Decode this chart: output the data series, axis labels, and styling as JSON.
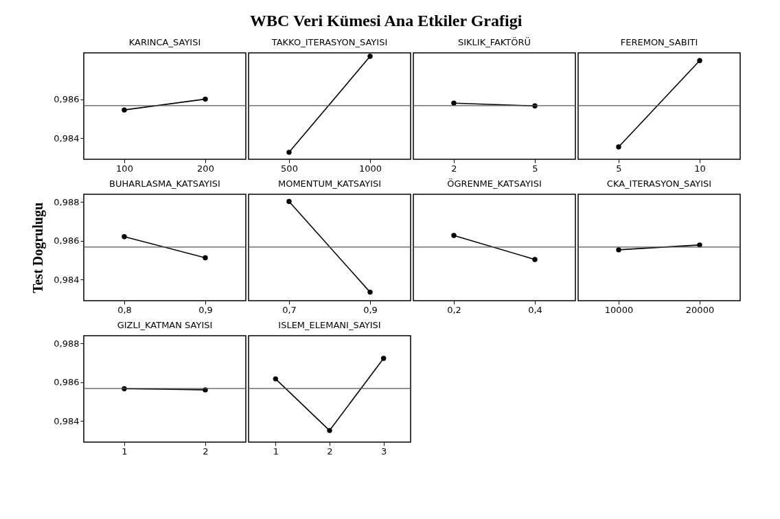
{
  "chart_data": [
    {
      "type": "other",
      "title": "WBC Veri Kümesi Ana Etkiler Grafigi"
    },
    {
      "type": "line",
      "title": "KARINCA_SAYISI",
      "categories": [
        "100",
        "200"
      ],
      "values": [
        0.98545,
        0.98601
      ],
      "color": "#000000",
      "marker": "circle",
      "ylim": [
        0.9829,
        0.9884
      ],
      "yticks": [
        {
          "value": 0.984,
          "label": "0,984"
        },
        {
          "value": 0.986,
          "label": "0,986"
        }
      ],
      "ref_lines": [
        {
          "axis": "y",
          "value": 0.98567
        }
      ]
    },
    {
      "type": "line",
      "title": "TAKKO_ITERASYON_SAYISI",
      "categories": [
        "500",
        "1000"
      ],
      "values": [
        0.98326,
        0.98822
      ],
      "color": "#000000",
      "marker": "circle",
      "ylim": [
        0.9829,
        0.9884
      ],
      "tick_labels": "x",
      "ref_lines": [
        {
          "axis": "y",
          "value": 0.98567
        }
      ]
    },
    {
      "type": "line",
      "title": "SIKLIK_FAKTÖRÜ",
      "categories": [
        "2",
        "5"
      ],
      "values": [
        0.9858,
        0.98566
      ],
      "color": "#000000",
      "marker": "circle",
      "ylim": [
        0.9829,
        0.9884
      ],
      "tick_labels": "x",
      "ref_lines": [
        {
          "axis": "y",
          "value": 0.98567
        }
      ]
    },
    {
      "type": "line",
      "title": "FEREMON_SABITI",
      "categories": [
        "5",
        "10"
      ],
      "values": [
        0.98354,
        0.988
      ],
      "color": "#000000",
      "marker": "circle",
      "ylim": [
        0.9829,
        0.9884
      ],
      "tick_labels": "x",
      "ref_lines": [
        {
          "axis": "y",
          "value": 0.98567
        }
      ]
    },
    {
      "type": "line",
      "title": "BUHARLASMA_KATSAYISI",
      "ylabel": "Test Dogrulugu",
      "categories": [
        "0,8",
        "0,9"
      ],
      "values": [
        0.98621,
        0.98512
      ],
      "color": "#000000",
      "marker": "circle",
      "ylim": [
        0.9829,
        0.9884
      ],
      "yticks": [
        {
          "value": 0.984,
          "label": "0,984"
        },
        {
          "value": 0.986,
          "label": "0,986"
        },
        {
          "value": 0.988,
          "label": "0,988"
        }
      ],
      "ref_lines": [
        {
          "axis": "y",
          "value": 0.98567
        }
      ]
    },
    {
      "type": "line",
      "title": "MOMENTUM_KATSAYISI",
      "categories": [
        "0,7",
        "0,9"
      ],
      "values": [
        0.98803,
        0.98334
      ],
      "color": "#000000",
      "marker": "circle",
      "ylim": [
        0.9829,
        0.9884
      ],
      "tick_labels": "x",
      "ref_lines": [
        {
          "axis": "y",
          "value": 0.98567
        }
      ]
    },
    {
      "type": "line",
      "title": "ÖGRENME_KATSAYISI",
      "categories": [
        "0,2",
        "0,4"
      ],
      "values": [
        0.98627,
        0.98503
      ],
      "color": "#000000",
      "marker": "circle",
      "ylim": [
        0.9829,
        0.9884
      ],
      "tick_labels": "x",
      "ref_lines": [
        {
          "axis": "y",
          "value": 0.98567
        }
      ]
    },
    {
      "type": "line",
      "title": "CKA_ITERASYON_SAYISI",
      "categories": [
        "10000",
        "20000"
      ],
      "values": [
        0.98553,
        0.98578
      ],
      "color": "#000000",
      "marker": "circle",
      "ylim": [
        0.9829,
        0.9884
      ],
      "tick_labels": "x",
      "ref_lines": [
        {
          "axis": "y",
          "value": 0.98567
        }
      ]
    },
    {
      "type": "line",
      "title": "GIZLI_KATMAN SAYISI",
      "categories": [
        "1",
        "2"
      ],
      "values": [
        0.98566,
        0.9856
      ],
      "color": "#000000",
      "marker": "circle",
      "ylim": [
        0.9829,
        0.9884
      ],
      "yticks": [
        {
          "value": 0.984,
          "label": "0,984"
        },
        {
          "value": 0.986,
          "label": "0,986"
        },
        {
          "value": 0.988,
          "label": "0,988"
        }
      ],
      "ref_lines": [
        {
          "axis": "y",
          "value": 0.98567
        }
      ]
    },
    {
      "type": "line",
      "title": "ISLEM_ELEMANI_SAYISI",
      "categories": [
        "1",
        "2",
        "3"
      ],
      "values": [
        0.98617,
        0.9835,
        0.98723
      ],
      "color": "#000000",
      "marker": "circle",
      "ylim": [
        0.9829,
        0.9884
      ],
      "tick_labels": "x",
      "ref_lines": [
        {
          "axis": "y",
          "value": 0.98567
        }
      ]
    }
  ]
}
